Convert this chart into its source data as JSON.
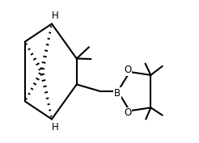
{
  "background": "#ffffff",
  "line_color": "#000000",
  "line_width": 1.5,
  "text_color": "#000000",
  "font_size": 8.5,
  "figsize": [
    2.46,
    1.77
  ],
  "dpi": 100,
  "xlim": [
    0,
    10
  ],
  "ylim": [
    0,
    7.2
  ]
}
